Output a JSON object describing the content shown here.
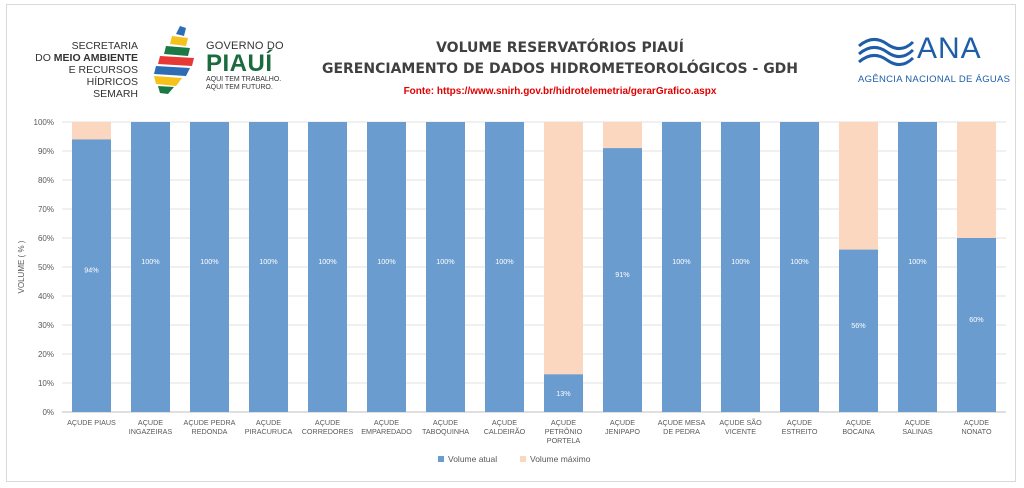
{
  "header": {
    "secretaria": [
      "SECRETARIA",
      "DO",
      "MEIO AMBIENTE",
      "E RECURSOS HÍDRICOS",
      "SEMARH"
    ],
    "governo": "GOVERNO DO",
    "piaui": "PIAUÍ",
    "slogan1": "AQUI TEM TRABALHO.",
    "slogan2": "AQUI TEM FUTURO.",
    "title1": "VOLUME RESERVATÓRIOS PIAUÍ",
    "title2": "GERENCIAMENTO DE DADOS HIDROMETEOROLÓGICOS - GDH",
    "source": "Fonte: https://www.snirh.gov.br/hidrotelemetria/gerarGrafico.aspx",
    "ana_name": "ANA",
    "ana_sub": "AGÊNCIA NACIONAL DE ÁGUAS"
  },
  "colors": {
    "actual": "#6a9ccf",
    "max": "#fbd7c0",
    "grid": "#e0e0e0",
    "title": "#404040",
    "source": "#e00000"
  },
  "chart_data": {
    "type": "bar",
    "stacked": true,
    "ylabel": "VOLUME ( % )",
    "ylim": [
      0,
      100
    ],
    "yticks": [
      "0%",
      "10%",
      "20%",
      "30%",
      "40%",
      "50%",
      "60%",
      "70%",
      "80%",
      "90%",
      "100%"
    ],
    "categories": [
      [
        "AÇUDE PIAUS"
      ],
      [
        "AÇUDE",
        "INGAZEIRAS"
      ],
      [
        "AÇUDE PEDRA",
        "REDONDA"
      ],
      [
        "AÇUDE",
        "PIRACURUCA"
      ],
      [
        "AÇUDE",
        "CORREDORES"
      ],
      [
        "AÇUDE",
        "EMPAREDADO"
      ],
      [
        "AÇUDE",
        "TABOQUINHA"
      ],
      [
        "AÇUDE",
        "CALDEIRÃO"
      ],
      [
        "AÇUDE",
        "PETRÔNIO",
        "PORTELA"
      ],
      [
        "AÇUDE",
        "JENIPAPO"
      ],
      [
        "AÇUDE MESA",
        "DE PEDRA"
      ],
      [
        "AÇUDE SÃO",
        "VICENTE"
      ],
      [
        "AÇUDE",
        "ESTREITO"
      ],
      [
        "AÇUDE",
        "BOCAINA"
      ],
      [
        "AÇUDE",
        "SALINAS"
      ],
      [
        "AÇUDE",
        "NONATO"
      ]
    ],
    "series": [
      {
        "name": "Volume atual",
        "values": [
          94,
          100,
          100,
          100,
          100,
          100,
          100,
          100,
          13,
          91,
          100,
          100,
          100,
          56,
          100,
          60
        ],
        "labels": [
          "94%",
          "100%",
          "100%",
          "100%",
          "100%",
          "100%",
          "100%",
          "100%",
          "13%",
          "91%",
          "100%",
          "100%",
          "100%",
          "56%",
          "100%",
          "60%"
        ]
      },
      {
        "name": "Volume máximo",
        "values": [
          6,
          0,
          0,
          0,
          0,
          0,
          0,
          0,
          87,
          9,
          0,
          0,
          0,
          44,
          0,
          40
        ]
      }
    ],
    "legend": [
      "Volume atual",
      "Volume máximo"
    ],
    "legend_position": "bottom"
  }
}
